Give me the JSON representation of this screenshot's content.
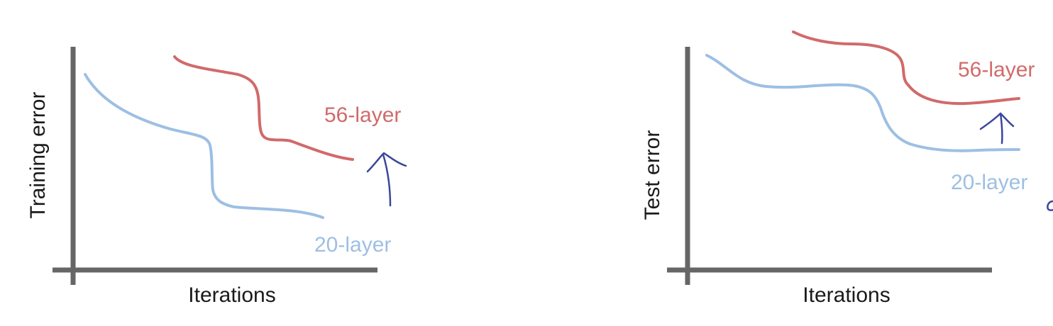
{
  "colors": {
    "axis": "#666666",
    "red_series": "#d16a6a",
    "blue_series": "#9dbfe3",
    "annotation_ink": "#3b479c",
    "text": "#1a1a1a"
  },
  "chart_data": [
    {
      "type": "line",
      "title": "",
      "xlabel": "Iterations",
      "ylabel": "Training error",
      "grid": false,
      "series": [
        {
          "name": "56-layer",
          "color": "#d16a6a"
        },
        {
          "name": "20-layer",
          "color": "#9dbfe3"
        }
      ],
      "annotation": "hand-drawn-up-arrow"
    },
    {
      "type": "line",
      "title": "",
      "xlabel": "Iterations",
      "ylabel": "Test error",
      "grid": false,
      "series": [
        {
          "name": "56-layer",
          "color": "#d16a6a"
        },
        {
          "name": "20-layer",
          "color": "#9dbfe3"
        }
      ],
      "annotation": "hand-drawn-up-arrow"
    }
  ]
}
